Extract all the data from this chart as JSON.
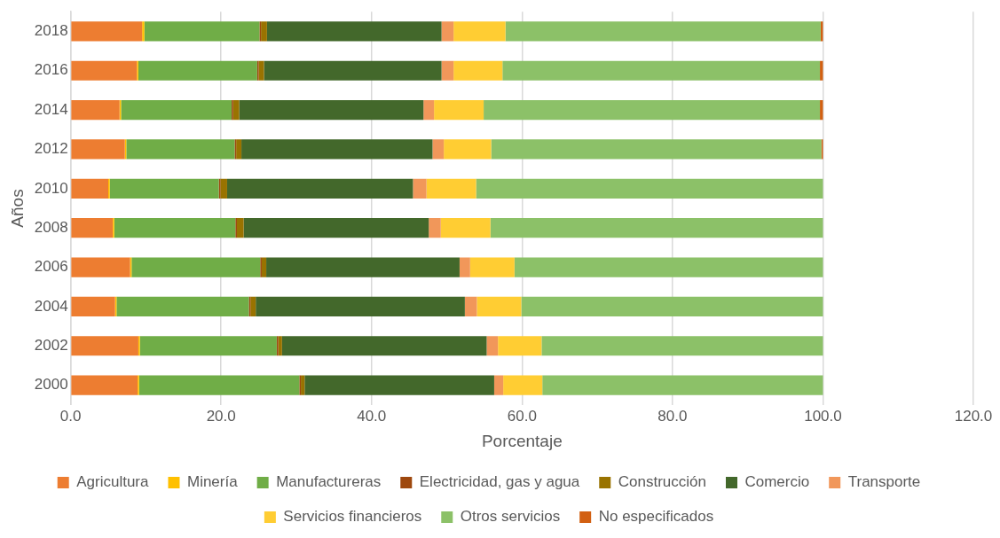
{
  "chart_data": {
    "type": "bar",
    "orientation": "horizontal",
    "stacked": true,
    "xlabel": "Porcentaje",
    "ylabel": "Años",
    "categories": [
      "2018",
      "2016",
      "2014",
      "2012",
      "2010",
      "2008",
      "2006",
      "2004",
      "2002",
      "2000"
    ],
    "series": [
      {
        "name": "Agricultura",
        "color": "#ed7d31",
        "values": [
          9.5,
          8.8,
          6.5,
          7.2,
          5.0,
          5.6,
          7.9,
          5.9,
          9.0,
          8.9
        ]
      },
      {
        "name": "Minería",
        "color": "#ffc000",
        "values": [
          0.3,
          0.2,
          0.2,
          0.2,
          0.2,
          0.2,
          0.2,
          0.2,
          0.2,
          0.2
        ]
      },
      {
        "name": "Manufactureras",
        "color": "#70ad47",
        "values": [
          15.3,
          15.8,
          14.7,
          14.4,
          14.5,
          16.1,
          17.1,
          17.6,
          18.2,
          21.3
        ]
      },
      {
        "name": "Electricidad, gas y agua",
        "color": "#9e480e",
        "values": [
          0.2,
          0.2,
          0.2,
          0.2,
          0.2,
          0.2,
          0.2,
          0.2,
          0.2,
          0.2
        ]
      },
      {
        "name": "Construcción",
        "color": "#997300",
        "values": [
          0.8,
          0.7,
          0.8,
          0.7,
          0.9,
          0.9,
          0.6,
          0.7,
          0.5,
          0.5
        ]
      },
      {
        "name": "Comercio",
        "color": "#43682b",
        "values": [
          23.2,
          23.6,
          24.5,
          25.4,
          24.7,
          24.6,
          25.7,
          27.8,
          27.2,
          25.2
        ]
      },
      {
        "name": "Transporte",
        "color": "#f1975a",
        "values": [
          1.6,
          1.6,
          1.4,
          1.5,
          1.8,
          1.6,
          1.4,
          1.6,
          1.5,
          1.2
        ]
      },
      {
        "name": "Servicios financieros",
        "color": "#ffcd33",
        "values": [
          6.9,
          6.5,
          6.6,
          6.3,
          6.6,
          6.6,
          5.9,
          5.9,
          5.8,
          5.2
        ]
      },
      {
        "name": "Otros servicios",
        "color": "#8cc168",
        "values": [
          41.9,
          42.2,
          44.7,
          43.9,
          46.1,
          44.2,
          41.0,
          40.1,
          37.4,
          37.3
        ]
      },
      {
        "name": "No especificados",
        "color": "#d26012",
        "values": [
          0.3,
          0.4,
          0.4,
          0.2,
          null,
          null,
          null,
          null,
          null,
          null
        ]
      }
    ],
    "xlim": [
      0,
      120
    ],
    "xticks": [
      {
        "value": 0,
        "label": "0.0"
      },
      {
        "value": 20,
        "label": "20.0"
      },
      {
        "value": 40,
        "label": "40.0"
      },
      {
        "value": 60,
        "label": "60.0"
      },
      {
        "value": 80,
        "label": "80.0"
      },
      {
        "value": 100,
        "label": "100.0"
      },
      {
        "value": 120,
        "label": "120.0"
      }
    ],
    "grid": "x",
    "legend": "bottom"
  }
}
